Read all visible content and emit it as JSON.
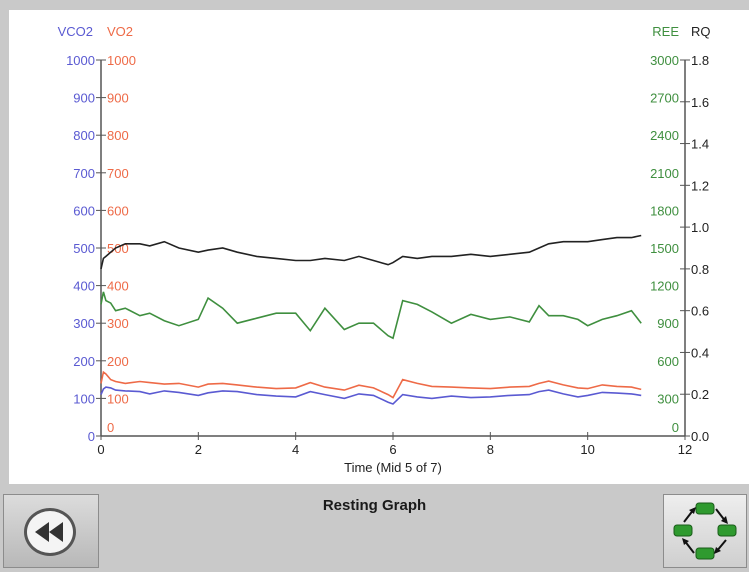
{
  "screen": {
    "title": "Resting Graph"
  },
  "controls": {
    "back_icon": "rewind-icon",
    "cycle_icon": "cycle-arrows-icon"
  },
  "colors": {
    "vco2": "#5a5ad2",
    "vo2": "#ee6a47",
    "ree": "#3f8f3f",
    "rq": "#222222"
  },
  "chart_data": {
    "type": "line",
    "title": "",
    "xlabel": "Time (Mid 5 of 7)",
    "xlim": [
      0,
      12
    ],
    "x_ticks": [
      "0",
      "2",
      "4",
      "6",
      "8",
      "10",
      "12"
    ],
    "grid": false,
    "axes": {
      "vco2": {
        "label": "VCO2",
        "range": [
          0,
          1000
        ],
        "ticks": [
          "0",
          "100",
          "200",
          "300",
          "400",
          "500",
          "600",
          "700",
          "800",
          "900",
          "1000"
        ]
      },
      "vo2": {
        "label": "VO2",
        "range": [
          0,
          1000
        ],
        "ticks": [
          "0",
          "100",
          "200",
          "300",
          "400",
          "500",
          "600",
          "700",
          "800",
          "900",
          "1000"
        ]
      },
      "ree": {
        "label": "REE",
        "range": [
          0,
          3000
        ],
        "ticks": [
          "0",
          "300",
          "600",
          "900",
          "1200",
          "1500",
          "1800",
          "2100",
          "2400",
          "2700",
          "3000"
        ]
      },
      "rq": {
        "label": "RQ",
        "range": [
          0.0,
          1.8
        ],
        "ticks": [
          "0.0",
          "0.2",
          "0.4",
          "0.6",
          "0.8",
          "1.0",
          "1.2",
          "1.4",
          "1.6",
          "1.8"
        ]
      }
    },
    "x": [
      0,
      0.05,
      0.1,
      0.2,
      0.3,
      0.5,
      0.8,
      1.0,
      1.3,
      1.6,
      2.0,
      2.2,
      2.5,
      2.8,
      3.2,
      3.6,
      4.0,
      4.3,
      4.6,
      5.0,
      5.3,
      5.6,
      5.9,
      6.0,
      6.2,
      6.5,
      6.8,
      7.2,
      7.6,
      8.0,
      8.4,
      8.8,
      9.0,
      9.2,
      9.5,
      9.8,
      10.0,
      10.3,
      10.6,
      10.9,
      11.1
    ],
    "series": [
      {
        "name": "VCO2",
        "axis": "vco2",
        "values": [
          110,
          125,
          130,
          128,
          122,
          120,
          118,
          112,
          120,
          116,
          108,
          115,
          120,
          118,
          110,
          106,
          104,
          118,
          110,
          100,
          112,
          108,
          90,
          85,
          110,
          104,
          100,
          106,
          102,
          104,
          108,
          110,
          118,
          122,
          112,
          104,
          108,
          116,
          114,
          112,
          108
        ]
      },
      {
        "name": "VO2",
        "axis": "vo2",
        "values": [
          140,
          170,
          165,
          150,
          145,
          140,
          145,
          142,
          138,
          140,
          130,
          138,
          140,
          136,
          130,
          126,
          128,
          142,
          130,
          122,
          135,
          128,
          110,
          102,
          150,
          140,
          132,
          130,
          128,
          126,
          130,
          132,
          140,
          146,
          136,
          128,
          126,
          136,
          132,
          130,
          124
        ]
      },
      {
        "name": "REE",
        "axis": "ree",
        "values": [
          1050,
          1150,
          1080,
          1060,
          1000,
          1020,
          960,
          980,
          920,
          880,
          930,
          1100,
          1020,
          900,
          940,
          980,
          980,
          840,
          1020,
          850,
          900,
          900,
          800,
          780,
          1080,
          1050,
          990,
          900,
          970,
          930,
          950,
          910,
          1040,
          960,
          960,
          930,
          880,
          930,
          960,
          1000,
          900
        ]
      },
      {
        "name": "RQ",
        "axis": "rq",
        "values": [
          0.8,
          0.85,
          0.86,
          0.88,
          0.9,
          0.92,
          0.92,
          0.91,
          0.93,
          0.9,
          0.88,
          0.89,
          0.9,
          0.88,
          0.86,
          0.85,
          0.84,
          0.84,
          0.85,
          0.84,
          0.86,
          0.84,
          0.82,
          0.83,
          0.86,
          0.85,
          0.86,
          0.86,
          0.87,
          0.86,
          0.87,
          0.88,
          0.9,
          0.92,
          0.93,
          0.93,
          0.93,
          0.94,
          0.95,
          0.95,
          0.96
        ]
      }
    ]
  }
}
